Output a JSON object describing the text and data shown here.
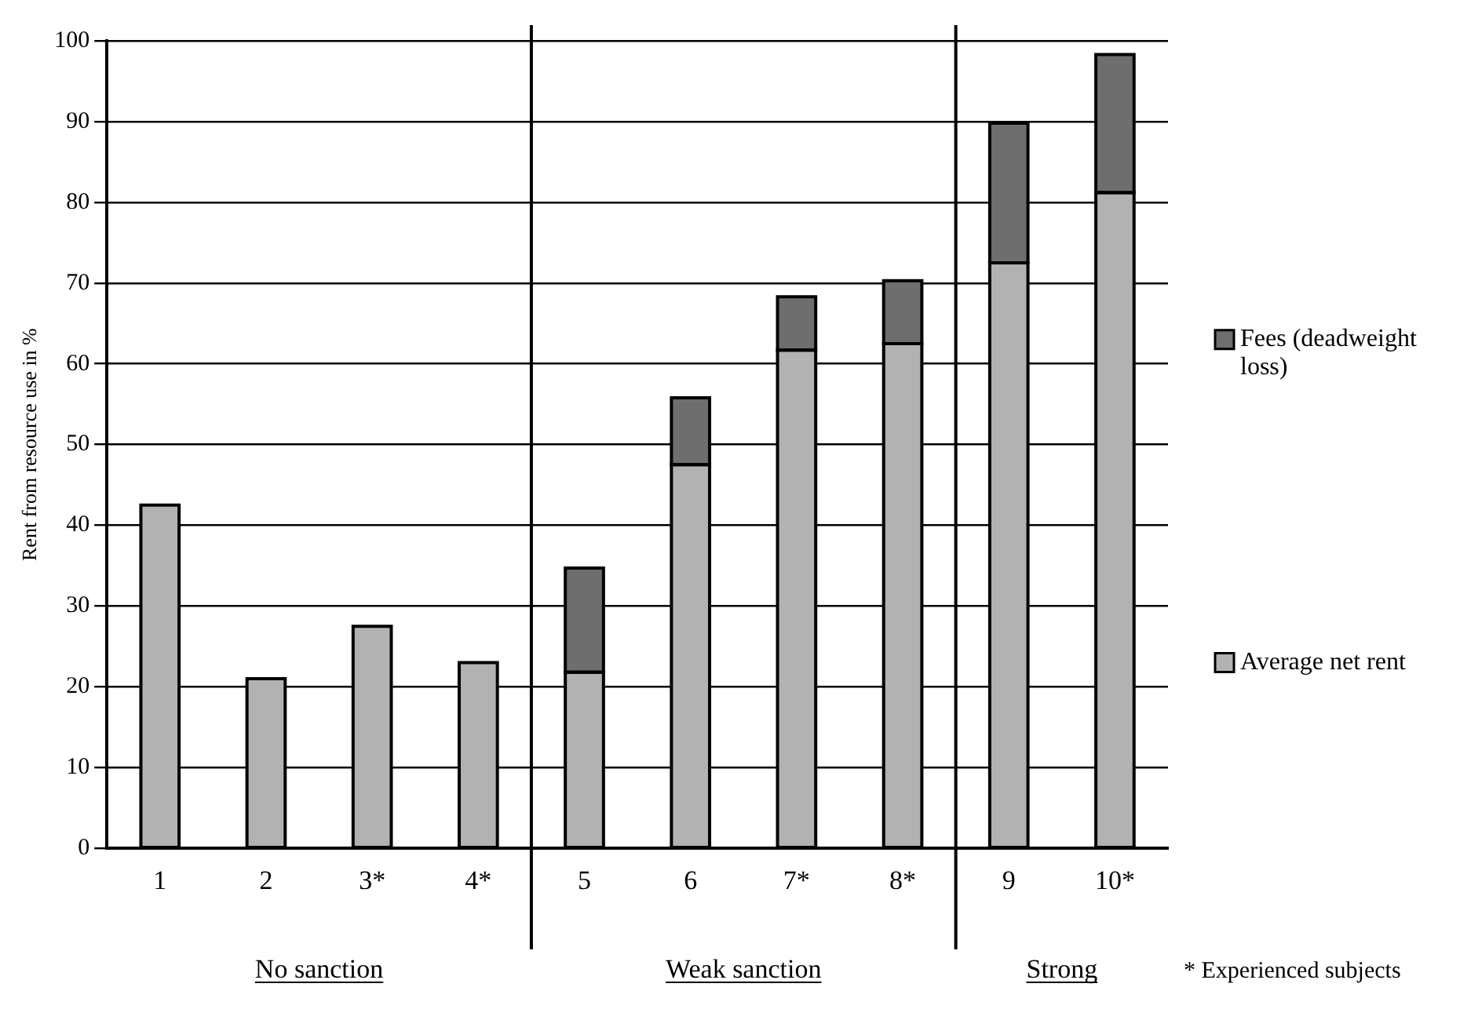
{
  "chart_data": {
    "type": "bar",
    "stacked": true,
    "ylabel": "Rent from resource use in %",
    "categories": [
      "1",
      "2",
      "3*",
      "4*",
      "5",
      "6",
      "7*",
      "8*",
      "9",
      "10*"
    ],
    "series": [
      {
        "name": "Average net rent",
        "color": "#b2b2b2",
        "values": [
          42.5,
          21,
          27.5,
          23,
          21.8,
          47.5,
          61.7,
          62.5,
          72.5,
          81.2
        ]
      },
      {
        "name": "Fees (deadweight loss)",
        "color": "#6e6e6e",
        "values": [
          null,
          null,
          null,
          null,
          12.9,
          8.3,
          6.6,
          7.8,
          17.3,
          17.1
        ]
      }
    ],
    "ylim": [
      0,
      100
    ],
    "yticks": [
      0,
      10,
      20,
      30,
      40,
      50,
      60,
      70,
      80,
      90,
      100
    ],
    "grid": "y",
    "legend": "right",
    "annotations": [
      "No sanction",
      "Weak sanction",
      "Strong",
      "* Experienced subjects"
    ]
  }
}
